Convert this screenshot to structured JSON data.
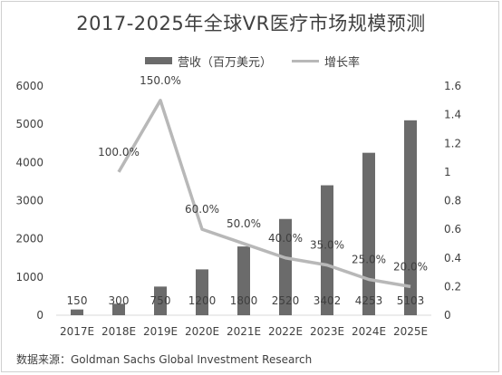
{
  "title": "2017-2025年全球VR医疗市场规模预测",
  "source": "数据来源：Goldman Sachs Global Investment Research",
  "legend": {
    "bar_label": "营收（百万美元）",
    "line_label": "增长率"
  },
  "chart_data": {
    "type": "bar",
    "title": "2017-2025年全球VR医疗市场规模预测",
    "categories": [
      "2017E",
      "2018E",
      "2019E",
      "2020E",
      "2021E",
      "2022E",
      "2023E",
      "2024E",
      "2025E"
    ],
    "series": [
      {
        "name": "营收（百万美元）",
        "type": "bar",
        "axis": "left",
        "values": [
          150,
          300,
          750,
          1200,
          1800,
          2520,
          3402,
          4253,
          5103
        ],
        "labels": [
          "150",
          "300",
          "750",
          "1200",
          "1800",
          "2520",
          "3402",
          "4253",
          "5103"
        ],
        "color": "#6b6b6b"
      },
      {
        "name": "增长率",
        "type": "line",
        "axis": "right",
        "values": [
          null,
          1.0,
          1.5,
          0.6,
          0.5,
          0.4,
          0.35,
          0.25,
          0.2
        ],
        "labels": [
          null,
          "100.0%",
          "150.0%",
          "60.0%",
          "50.0%",
          "40.0%",
          "35.0%",
          "25.0%",
          "20.0%"
        ],
        "color": "#b8b8b8"
      }
    ],
    "y_left": {
      "ylim": [
        0,
        6000
      ],
      "ticks": [
        "0",
        "1000",
        "2000",
        "3000",
        "4000",
        "5000",
        "6000"
      ]
    },
    "y_right": {
      "ylim": [
        0,
        1.6
      ],
      "ticks": [
        "0",
        "0.2",
        "0.4",
        "0.6",
        "0.8",
        "1",
        "1.2",
        "1.4",
        "1.6"
      ]
    },
    "grid": false,
    "legend_position": "top"
  }
}
